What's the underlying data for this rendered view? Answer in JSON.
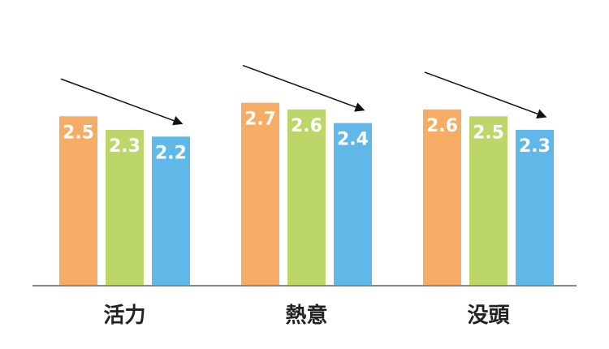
{
  "chart_data": {
    "type": "bar",
    "categories": [
      "活力",
      "熱意",
      "没頭"
    ],
    "series": [
      {
        "values": [
          2.5,
          2.7,
          2.6
        ],
        "color": "#F5AC64"
      },
      {
        "values": [
          2.3,
          2.6,
          2.5
        ],
        "color": "#BDD66A"
      },
      {
        "values": [
          2.2,
          2.4,
          2.3
        ],
        "color": "#5FB8E8"
      }
    ],
    "ylim": [
      0,
      3.2
    ],
    "grid": false,
    "legend": "none",
    "annotations": [
      "downward-trend-arrow",
      "downward-trend-arrow",
      "downward-trend-arrow"
    ],
    "title": "",
    "xlabel": "",
    "ylabel": ""
  }
}
